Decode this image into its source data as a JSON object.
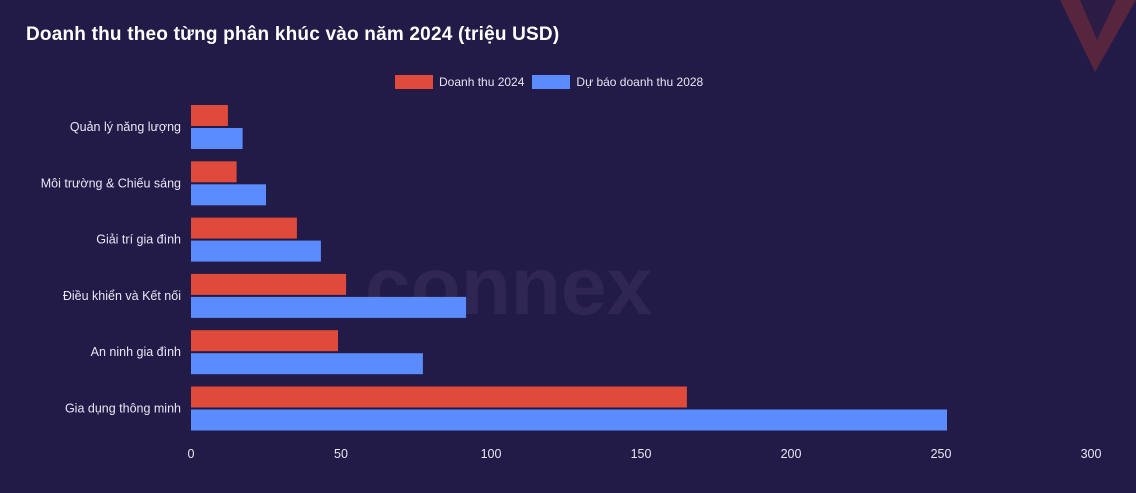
{
  "title": "Doanh thu theo từng phân khúc vào năm 2024 (triệu USD)",
  "watermark": "connex",
  "colors": {
    "background": "#221a47",
    "series_2024": "#e04a3a",
    "series_2028": "#5b8cff"
  },
  "chart_data": {
    "type": "bar",
    "orientation": "horizontal",
    "title": "Doanh thu theo từng phân khúc vào năm 2024 (triệu USD)",
    "categories": [
      "Quản lý năng lượng",
      "Môi trường & Chiếu sáng",
      "Giải trí gia đình",
      "Điều khiển và Kết nối",
      "An ninh gia đình",
      "Gia dụng thông minh"
    ],
    "series": [
      {
        "name": "Doanh thu 2024",
        "color": "#e04a3a",
        "values": [
          12.3,
          15.2,
          35.3,
          51.7,
          49,
          165.3
        ]
      },
      {
        "name": "Dự báo doanh thu 2028",
        "color": "#5b8cff",
        "values": [
          17.2,
          25,
          43.3,
          91.7,
          77.3,
          252
        ]
      }
    ],
    "xlim": [
      0,
      300
    ],
    "xticks": [
      0,
      50,
      100,
      150,
      200,
      250,
      300
    ],
    "grid": false,
    "legend": "top"
  }
}
